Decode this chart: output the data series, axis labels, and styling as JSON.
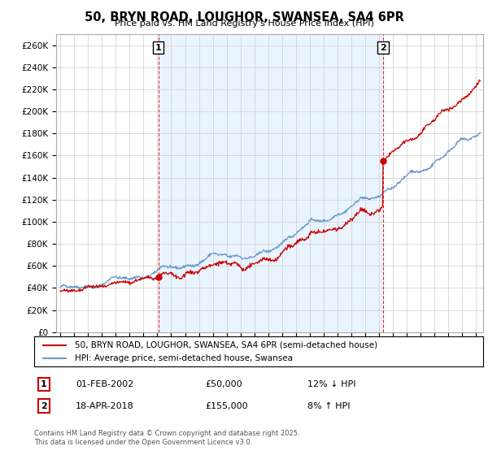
{
  "title": "50, BRYN ROAD, LOUGHOR, SWANSEA, SA4 6PR",
  "subtitle": "Price paid vs. HM Land Registry's House Price Index (HPI)",
  "ylabel_ticks": [
    "£0",
    "£20K",
    "£40K",
    "£60K",
    "£80K",
    "£100K",
    "£120K",
    "£140K",
    "£160K",
    "£180K",
    "£200K",
    "£220K",
    "£240K",
    "£260K"
  ],
  "ytick_values": [
    0,
    20000,
    40000,
    60000,
    80000,
    100000,
    120000,
    140000,
    160000,
    180000,
    200000,
    220000,
    240000,
    260000
  ],
  "ylim": [
    0,
    270000
  ],
  "xlim_start": 1994.7,
  "xlim_end": 2025.5,
  "transaction1_date": 2002.08,
  "transaction1_price": 50000,
  "transaction1_label": "1",
  "transaction2_date": 2018.29,
  "transaction2_price": 155000,
  "transaction2_label": "2",
  "hpi_color": "#6699cc",
  "hpi_fill_color": "#ddeeff",
  "price_color": "#cc0000",
  "vline_color": "#cc0000",
  "grid_color": "#cccccc",
  "background_color": "#ffffff",
  "legend_price_label": "50, BRYN ROAD, LOUGHOR, SWANSEA, SA4 6PR (semi-detached house)",
  "legend_hpi_label": "HPI: Average price, semi-detached house, Swansea",
  "annotation1_date": "01-FEB-2002",
  "annotation1_price": "£50,000",
  "annotation1_hpi": "12% ↓ HPI",
  "annotation2_date": "18-APR-2018",
  "annotation2_price": "£155,000",
  "annotation2_hpi": "8% ↑ HPI",
  "footer": "Contains HM Land Registry data © Crown copyright and database right 2025.\nThis data is licensed under the Open Government Licence v3.0."
}
